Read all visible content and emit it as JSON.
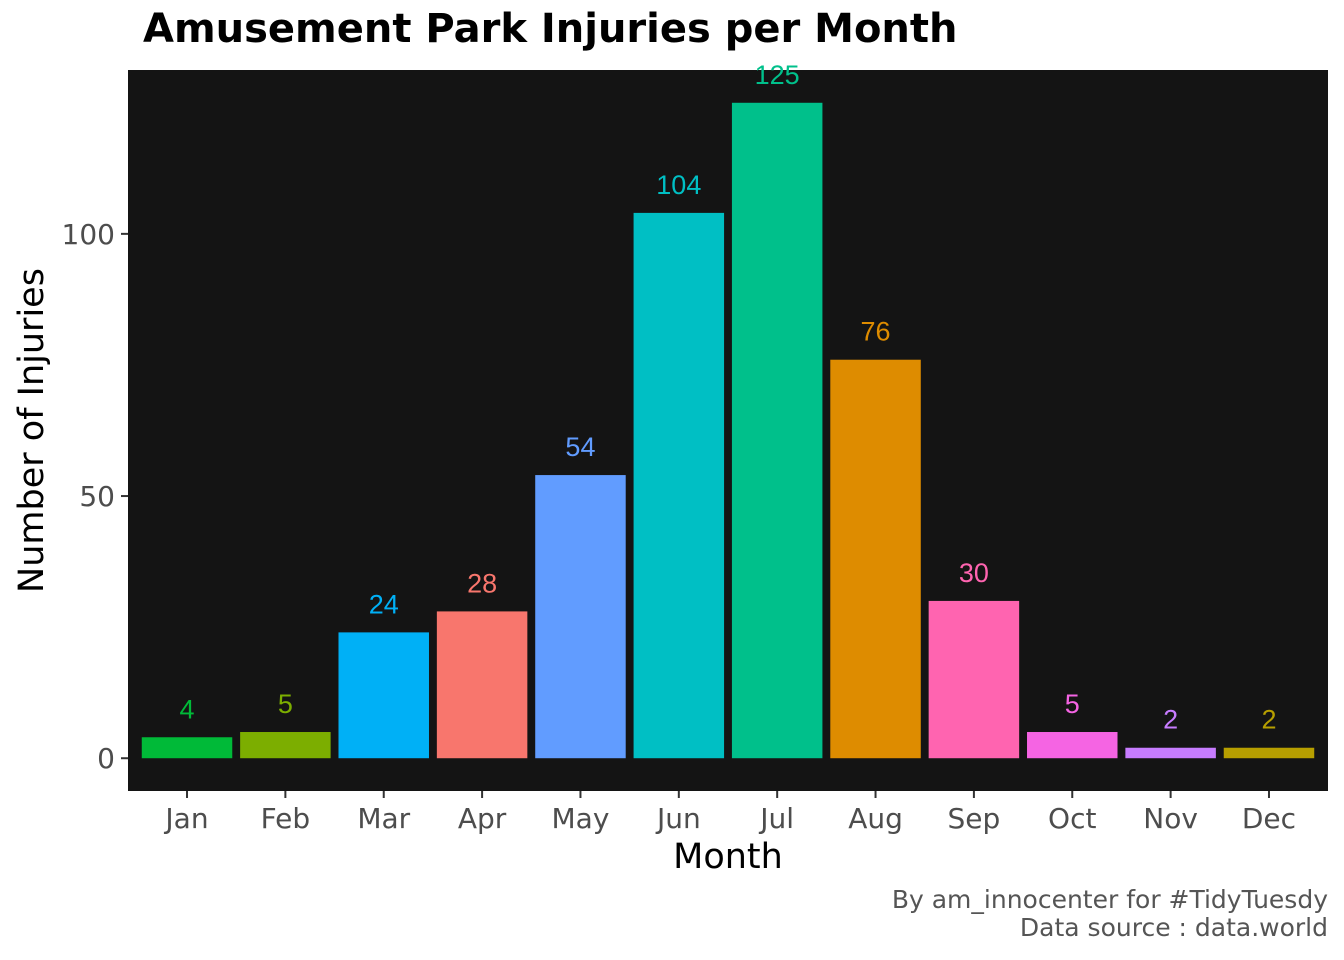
{
  "chart_data": {
    "type": "bar",
    "title": "Amusement Park Injuries per Month",
    "xlabel": "Month",
    "ylabel": "Number of Injuries",
    "categories": [
      "Jan",
      "Feb",
      "Mar",
      "Apr",
      "May",
      "Jun",
      "Jul",
      "Aug",
      "Sep",
      "Oct",
      "Nov",
      "Dec"
    ],
    "values": [
      4,
      5,
      24,
      28,
      54,
      104,
      125,
      76,
      30,
      5,
      2,
      2
    ],
    "colors": [
      "#00BA38",
      "#7CAE00",
      "#00B0F6",
      "#F8766D",
      "#619CFF",
      "#00BFC4",
      "#00C08B",
      "#DE8C00",
      "#FF64B0",
      "#F564E3",
      "#C77CFF",
      "#B79F00"
    ],
    "ylim": [
      -6.25,
      131.25
    ],
    "yticks": [
      0,
      50,
      100
    ],
    "grid": false,
    "legend": "none",
    "panel_background": "#141414",
    "caption": [
      "By am_innocenter for #TidyTuesdy",
      "Data source : data.world"
    ]
  }
}
